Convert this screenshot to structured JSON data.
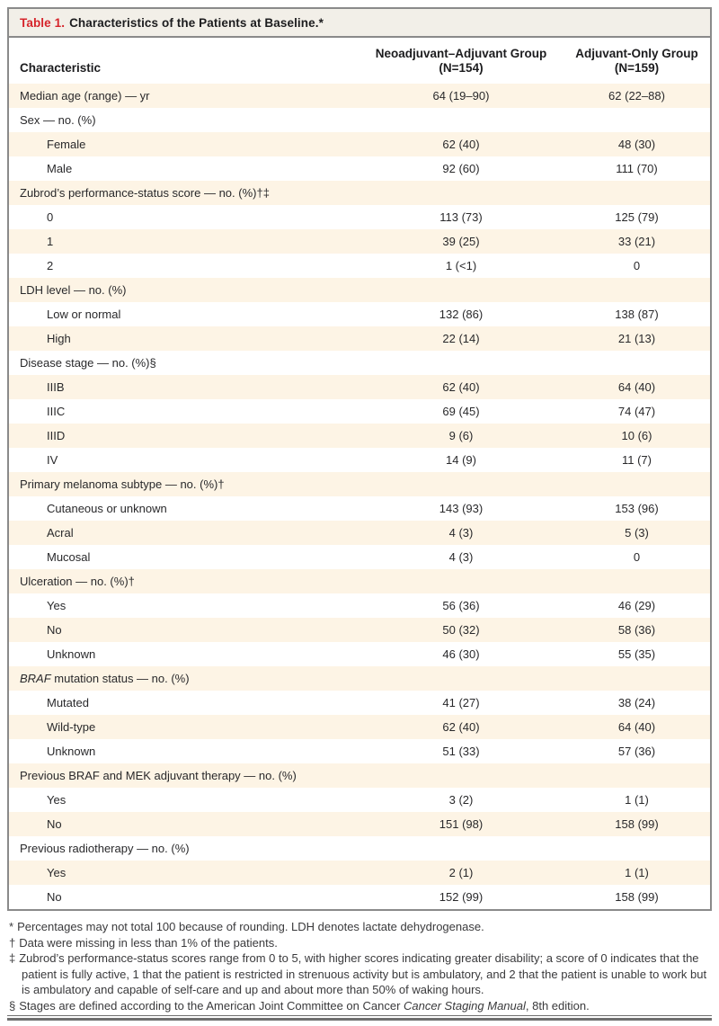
{
  "colors": {
    "table_label_red": "#d6242b",
    "row_shading_cream": "#fdf4e5",
    "title_bar_bg": "#f2efe8",
    "border_gray": "#8a8a8a"
  },
  "table": {
    "label": "Table 1.",
    "title": "Characteristics of the Patients at Baseline.*",
    "columns": {
      "characteristic": "Characteristic",
      "group1_line1": "Neoadjuvant–Adjuvant Group",
      "group1_line2": "(N=154)",
      "group2_line1": "Adjuvant-Only Group",
      "group2_line2": "(N=159)"
    },
    "rows": [
      {
        "indent": false,
        "parts": [
          {
            "t": "Median age (range) — yr"
          }
        ],
        "v1": "64 (19–90)",
        "v2": "62 (22–88)"
      },
      {
        "indent": false,
        "parts": [
          {
            "t": "Sex — no. (%)"
          }
        ],
        "v1": "",
        "v2": ""
      },
      {
        "indent": true,
        "parts": [
          {
            "t": "Female"
          }
        ],
        "v1": "62 (40)",
        "v2": "48 (30)"
      },
      {
        "indent": true,
        "parts": [
          {
            "t": "Male"
          }
        ],
        "v1": "92 (60)",
        "v2": "111 (70)"
      },
      {
        "indent": false,
        "parts": [
          {
            "t": "Zubrod’s performance-status score — no. (%)†‡"
          }
        ],
        "v1": "",
        "v2": ""
      },
      {
        "indent": true,
        "parts": [
          {
            "t": "0"
          }
        ],
        "v1": "113 (73)",
        "v2": "125 (79)"
      },
      {
        "indent": true,
        "parts": [
          {
            "t": "1"
          }
        ],
        "v1": "39 (25)",
        "v2": "33 (21)"
      },
      {
        "indent": true,
        "parts": [
          {
            "t": "2"
          }
        ],
        "v1": "1 (<1)",
        "v2": "0"
      },
      {
        "indent": false,
        "parts": [
          {
            "t": "LDH level — no. (%)"
          }
        ],
        "v1": "",
        "v2": ""
      },
      {
        "indent": true,
        "parts": [
          {
            "t": "Low or normal"
          }
        ],
        "v1": "132 (86)",
        "v2": "138 (87)"
      },
      {
        "indent": true,
        "parts": [
          {
            "t": "High"
          }
        ],
        "v1": "22 (14)",
        "v2": "21 (13)"
      },
      {
        "indent": false,
        "parts": [
          {
            "t": "Disease stage — no. (%)§"
          }
        ],
        "v1": "",
        "v2": ""
      },
      {
        "indent": true,
        "parts": [
          {
            "t": "IIIB"
          }
        ],
        "v1": "62 (40)",
        "v2": "64 (40)"
      },
      {
        "indent": true,
        "parts": [
          {
            "t": "IIIC"
          }
        ],
        "v1": "69 (45)",
        "v2": "74 (47)"
      },
      {
        "indent": true,
        "parts": [
          {
            "t": "IIID"
          }
        ],
        "v1": "9 (6)",
        "v2": "10 (6)"
      },
      {
        "indent": true,
        "parts": [
          {
            "t": "IV"
          }
        ],
        "v1": "14 (9)",
        "v2": "11 (7)"
      },
      {
        "indent": false,
        "parts": [
          {
            "t": "Primary melanoma subtype — no. (%)†"
          }
        ],
        "v1": "",
        "v2": ""
      },
      {
        "indent": true,
        "parts": [
          {
            "t": "Cutaneous or unknown"
          }
        ],
        "v1": "143 (93)",
        "v2": "153 (96)"
      },
      {
        "indent": true,
        "parts": [
          {
            "t": "Acral"
          }
        ],
        "v1": "4 (3)",
        "v2": "5 (3)"
      },
      {
        "indent": true,
        "parts": [
          {
            "t": "Mucosal"
          }
        ],
        "v1": "4 (3)",
        "v2": "0"
      },
      {
        "indent": false,
        "parts": [
          {
            "t": "Ulceration — no. (%)†"
          }
        ],
        "v1": "",
        "v2": ""
      },
      {
        "indent": true,
        "parts": [
          {
            "t": "Yes"
          }
        ],
        "v1": "56 (36)",
        "v2": "46 (29)"
      },
      {
        "indent": true,
        "parts": [
          {
            "t": "No"
          }
        ],
        "v1": "50 (32)",
        "v2": "58 (36)"
      },
      {
        "indent": true,
        "parts": [
          {
            "t": "Unknown"
          }
        ],
        "v1": "46 (30)",
        "v2": "55 (35)"
      },
      {
        "indent": false,
        "parts": [
          {
            "t": "BRAF",
            "i": true
          },
          {
            "t": " mutation status — no. (%)"
          }
        ],
        "v1": "",
        "v2": ""
      },
      {
        "indent": true,
        "parts": [
          {
            "t": "Mutated"
          }
        ],
        "v1": "41 (27)",
        "v2": "38 (24)"
      },
      {
        "indent": true,
        "parts": [
          {
            "t": "Wild-type"
          }
        ],
        "v1": "62 (40)",
        "v2": "64 (40)"
      },
      {
        "indent": true,
        "parts": [
          {
            "t": "Unknown"
          }
        ],
        "v1": "51 (33)",
        "v2": "57 (36)"
      },
      {
        "indent": false,
        "parts": [
          {
            "t": "Previous BRAF and MEK adjuvant therapy — no. (%)"
          }
        ],
        "v1": "",
        "v2": ""
      },
      {
        "indent": true,
        "parts": [
          {
            "t": "Yes"
          }
        ],
        "v1": "3 (2)",
        "v2": "1 (1)"
      },
      {
        "indent": true,
        "parts": [
          {
            "t": "No"
          }
        ],
        "v1": "151 (98)",
        "v2": "158 (99)"
      },
      {
        "indent": false,
        "parts": [
          {
            "t": "Previous radiotherapy — no. (%)"
          }
        ],
        "v1": "",
        "v2": ""
      },
      {
        "indent": true,
        "parts": [
          {
            "t": "Yes"
          }
        ],
        "v1": "2 (1)",
        "v2": "1 (1)"
      },
      {
        "indent": true,
        "parts": [
          {
            "t": "No"
          }
        ],
        "v1": "152 (99)",
        "v2": "158 (99)"
      }
    ]
  },
  "footnotes": [
    {
      "marker": "*",
      "parts": [
        {
          "t": "Percentages may not total 100 because of rounding. LDH denotes lactate dehydrogenase."
        }
      ]
    },
    {
      "marker": "†",
      "parts": [
        {
          "t": "Data were missing in less than 1% of the patients."
        }
      ]
    },
    {
      "marker": "‡",
      "parts": [
        {
          "t": "Zubrod’s performance-status scores range from 0 to 5, with higher scores indicating greater disability; a score of 0 indicates that the patient is fully active, 1 that the patient is restricted in strenuous activity but is ambulatory, and 2 that the patient is unable to work but is ambulatory and capable of self-care and up and about more than 50% of waking hours."
        }
      ]
    },
    {
      "marker": "§",
      "parts": [
        {
          "t": "Stages are defined according to the American Joint Committee on Cancer "
        },
        {
          "t": "Cancer Staging Manual",
          "i": true
        },
        {
          "t": ", 8th edition."
        }
      ]
    }
  ]
}
